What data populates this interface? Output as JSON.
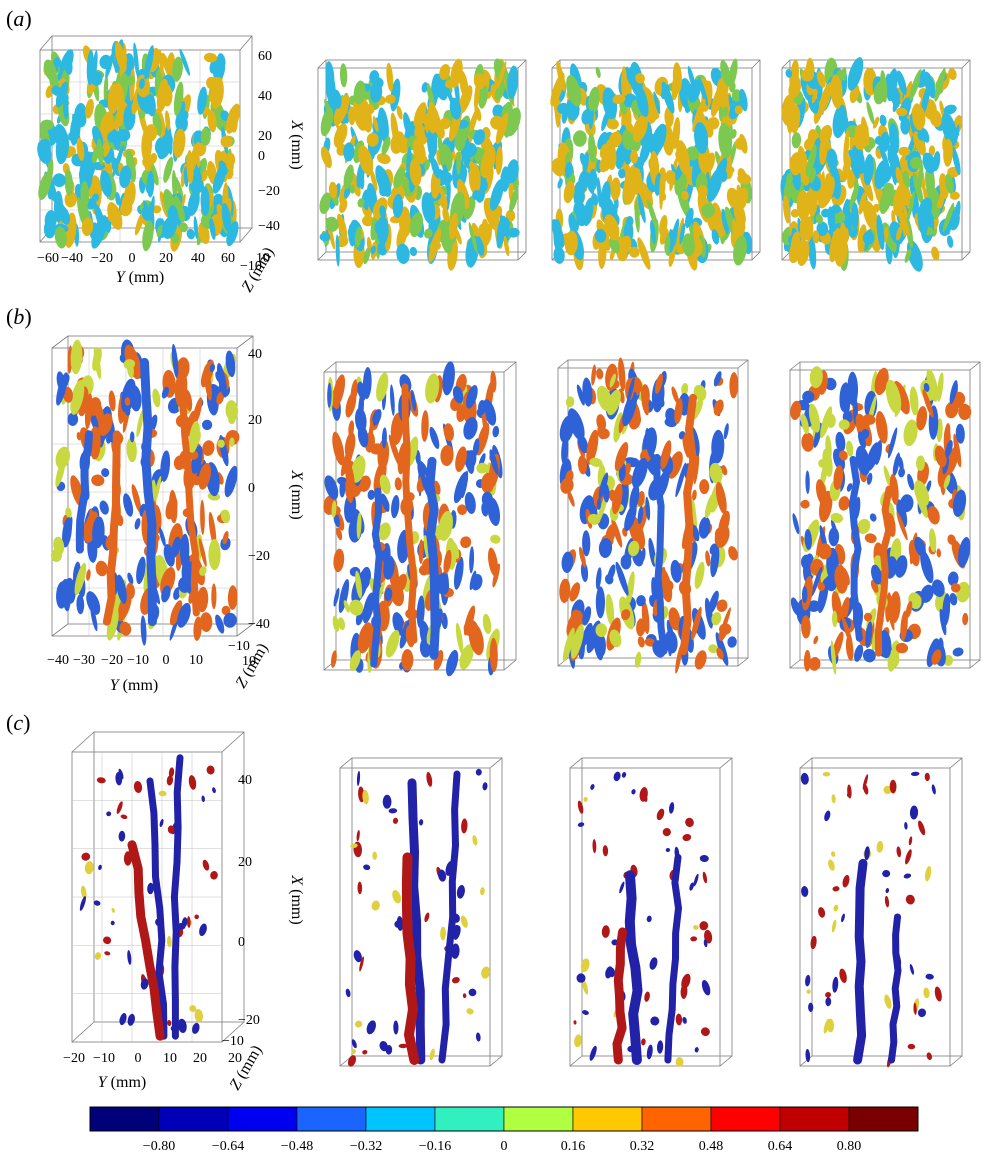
{
  "panels": [
    {
      "label": "a",
      "x_axis": {
        "title_var": "X",
        "unit": "(mm)",
        "ticks": [
          "60",
          "40",
          "20",
          "0",
          "−20",
          "−40"
        ]
      },
      "y_axis": {
        "title_var": "Y",
        "unit": "(mm)",
        "ticks": [
          "−60",
          "−40",
          "−20",
          "0",
          "20",
          "40",
          "60"
        ]
      },
      "z_axis": {
        "title_var": "Z",
        "unit": "(mm)",
        "ticks": [
          "−10",
          "10"
        ]
      }
    },
    {
      "label": "b",
      "x_axis": {
        "title_var": "X",
        "unit": "(mm)",
        "ticks": [
          "40",
          "20",
          "0",
          "−20",
          "−40"
        ]
      },
      "y_axis": {
        "title_var": "Y",
        "unit": "(mm)",
        "ticks": [
          "−40",
          "−30",
          "−20",
          "−10",
          "0",
          "10"
        ]
      },
      "z_axis": {
        "title_var": "Z",
        "unit": "(mm)",
        "ticks": [
          "−10",
          "10"
        ]
      }
    },
    {
      "label": "c",
      "x_axis": {
        "title_var": "X",
        "unit": "(mm)",
        "ticks": [
          "40",
          "20",
          "0",
          "−20"
        ]
      },
      "y_axis": {
        "title_var": "Y",
        "unit": "(mm)",
        "ticks": [
          "−20",
          "−10",
          "0",
          "10",
          "20"
        ]
      },
      "z_axis": {
        "title_var": "Z",
        "unit": "(mm)",
        "ticks": [
          "−10",
          "20"
        ]
      }
    }
  ],
  "colorbar": {
    "ticks": [
      "−0.80",
      "−0.64",
      "−0.48",
      "−0.32",
      "−0.16",
      "0",
      "0.16",
      "0.32",
      "0.48",
      "0.64",
      "0.80"
    ],
    "colors": [
      "#00007a",
      "#0000b8",
      "#0000f0",
      "#1a64ff",
      "#00c4ff",
      "#30f0c0",
      "#b0ff40",
      "#ffc800",
      "#ff6400",
      "#ff0000",
      "#c00000",
      "#7a0000"
    ]
  },
  "palette": {
    "a_pos": "#e0b418",
    "a_neg": "#2cb8e0",
    "a_mid": "#7cc850",
    "b_pos": "#e2661e",
    "b_neg": "#2e62d6",
    "b_mid": "#c8d840",
    "c_pos": "#b01818",
    "c_neg": "#2222a8",
    "c_mid": "#e0d040"
  }
}
